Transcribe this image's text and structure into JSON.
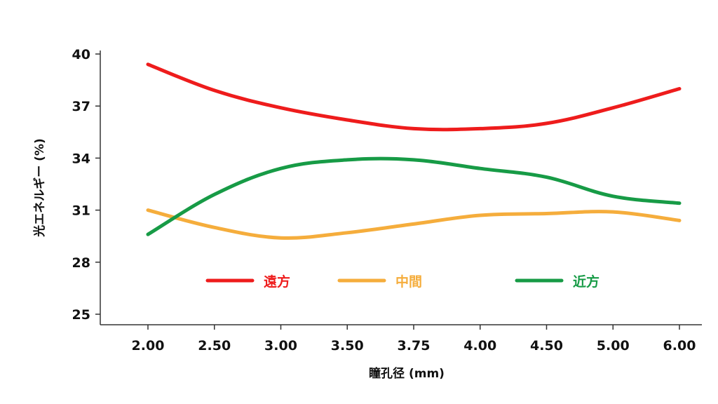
{
  "chart_data": {
    "type": "line",
    "xlabel": "瞳孔径 (mm)",
    "ylabel": "光エネルギー (%)",
    "categories": [
      "2.00",
      "2.50",
      "3.00",
      "3.50",
      "3.75",
      "4.00",
      "4.50",
      "5.00",
      "6.00"
    ],
    "yticks": [
      "25",
      "28",
      "31",
      "34",
      "37",
      "40"
    ],
    "ylim": [
      25,
      40
    ],
    "grid": false,
    "legend_position": "inside-bottom",
    "series": [
      {
        "name": "遠方",
        "color": "#ee1c1c",
        "values": [
          39.4,
          37.9,
          36.9,
          36.2,
          35.7,
          35.7,
          36.0,
          36.9,
          38.0
        ]
      },
      {
        "name": "中間",
        "color": "#f5ad3c",
        "values": [
          31.0,
          30.0,
          29.4,
          29.7,
          30.2,
          30.7,
          30.8,
          30.9,
          30.4
        ]
      },
      {
        "name": "近方",
        "color": "#179b46",
        "values": [
          29.6,
          31.9,
          33.4,
          33.9,
          33.9,
          33.4,
          32.9,
          31.8,
          31.4
        ]
      }
    ]
  }
}
